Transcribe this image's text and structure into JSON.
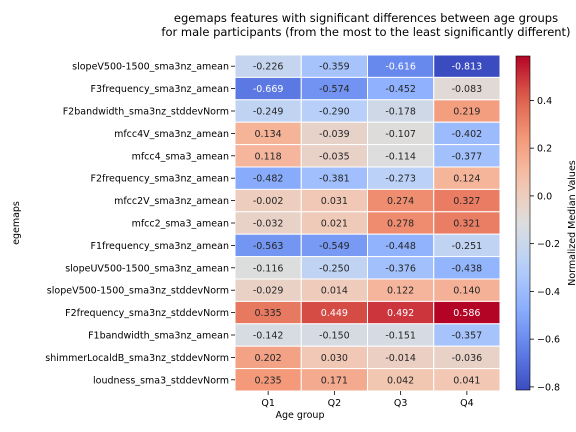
{
  "chart_data": {
    "type": "heatmap",
    "title_lines": [
      "egemaps features with significant differences between age groups",
      "for male participants (from the most to the least significantly different)"
    ],
    "xlabel": "Age group",
    "ylabel": "egemaps",
    "columns": [
      "Q1",
      "Q2",
      "Q3",
      "Q4"
    ],
    "rows": [
      "slopeV500-1500_sma3nz_amean",
      "F3frequency_sma3nz_amean",
      "F2bandwidth_sma3nz_stddevNorm",
      "mfcc4V_sma3nz_amean",
      "mfcc4_sma3_amean",
      "F2frequency_sma3nz_amean",
      "mfcc2V_sma3nz_amean",
      "mfcc2_sma3_amean",
      "F1frequency_sma3nz_amean",
      "slopeUV500-1500_sma3nz_amean",
      "slopeV500-1500_sma3nz_stddevNorm",
      "F2frequency_sma3nz_stddevNorm",
      "F1bandwidth_sma3nz_amean",
      "shimmerLocaldB_sma3nz_stddevNorm",
      "loudness_sma3_stddevNorm"
    ],
    "values": [
      [
        -0.226,
        -0.359,
        -0.616,
        -0.813
      ],
      [
        -0.669,
        -0.574,
        -0.452,
        -0.083
      ],
      [
        -0.249,
        -0.29,
        -0.178,
        0.219
      ],
      [
        0.134,
        -0.039,
        -0.107,
        -0.402
      ],
      [
        0.118,
        -0.035,
        -0.114,
        -0.377
      ],
      [
        -0.482,
        -0.381,
        -0.273,
        0.124
      ],
      [
        -0.002,
        0.031,
        0.274,
        0.327
      ],
      [
        -0.032,
        0.021,
        0.278,
        0.321
      ],
      [
        -0.563,
        -0.549,
        -0.448,
        -0.251
      ],
      [
        -0.116,
        -0.25,
        -0.376,
        -0.438
      ],
      [
        -0.029,
        0.014,
        0.122,
        0.14
      ],
      [
        0.335,
        0.449,
        0.492,
        0.586
      ],
      [
        -0.142,
        -0.15,
        -0.151,
        -0.357
      ],
      [
        0.202,
        0.03,
        -0.014,
        -0.036
      ],
      [
        0.235,
        0.171,
        0.042,
        0.041
      ]
    ],
    "colorbar": {
      "label": "Normalized Median Values",
      "vmin": -0.813,
      "vmax": 0.586,
      "ticks": [
        -0.8,
        -0.6,
        -0.4,
        -0.2,
        0.0,
        0.2,
        0.4
      ],
      "tick_labels": [
        "−0.8",
        "−0.6",
        "−0.4",
        "−0.2",
        "0.0",
        "0.2",
        "0.4"
      ],
      "colormap": "coolwarm"
    }
  }
}
